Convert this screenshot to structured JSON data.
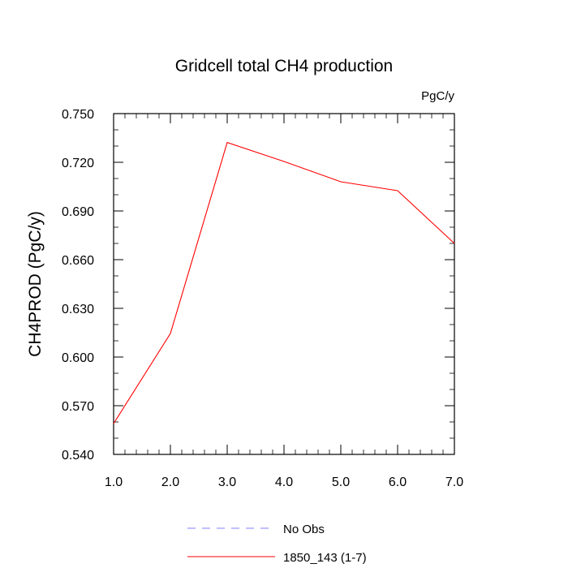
{
  "chart_data": {
    "type": "line",
    "title": "Gridcell total CH4 production",
    "units": "PgC/y",
    "xlabel": "",
    "ylabel": "CH4PROD  (PgC/y)",
    "xlim": [
      1.0,
      7.0
    ],
    "ylim": [
      0.54,
      0.75
    ],
    "x_ticks": [
      "1.0",
      "2.0",
      "3.0",
      "4.0",
      "5.0",
      "6.0",
      "7.0"
    ],
    "y_ticks": [
      "0.540",
      "0.570",
      "0.600",
      "0.630",
      "0.660",
      "0.690",
      "0.720",
      "0.750"
    ],
    "grid": false,
    "legend_position": "bottom",
    "series": [
      {
        "name": "1850_143 (1-7)",
        "color": "#ff0000",
        "style": "solid",
        "x": [
          1.0,
          2.0,
          3.0,
          4.0,
          5.0,
          6.0,
          7.0
        ],
        "y": [
          0.559,
          0.6145,
          0.7322,
          0.7205,
          0.708,
          0.7025,
          0.67
        ]
      }
    ],
    "legend": [
      {
        "name": "No Obs",
        "color": "#8080ff",
        "style": "dashed"
      },
      {
        "name": "1850_143 (1-7)",
        "color": "#ff0000",
        "style": "solid"
      }
    ]
  }
}
